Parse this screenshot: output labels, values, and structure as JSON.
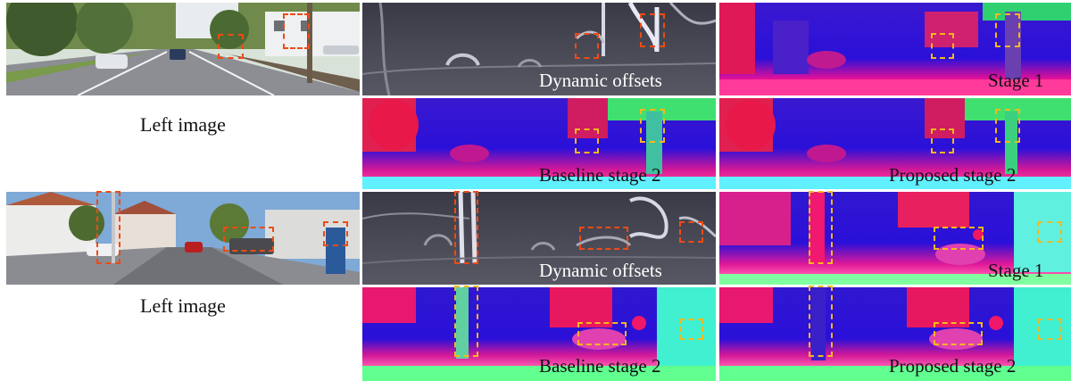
{
  "figure": {
    "rows": [
      {
        "left_caption": "Left image",
        "offsets_caption": "Dynamic offsets",
        "stage1_caption": "Stage 1",
        "baseline_caption": "Baseline stage 2",
        "proposed_caption": "Proposed stage 2"
      },
      {
        "left_caption": "Left image",
        "offsets_caption": "Dynamic offsets",
        "stage1_caption": "Stage 1",
        "baseline_caption": "Baseline stage 2",
        "proposed_caption": "Proposed stage 2"
      }
    ],
    "colors": {
      "highlight_red": "#ee4b14",
      "highlight_yellow": "#f5b81c",
      "disparity_far": "#2a10d8",
      "disparity_near": "#f01070",
      "offset_bg": "#4a4a58"
    }
  }
}
